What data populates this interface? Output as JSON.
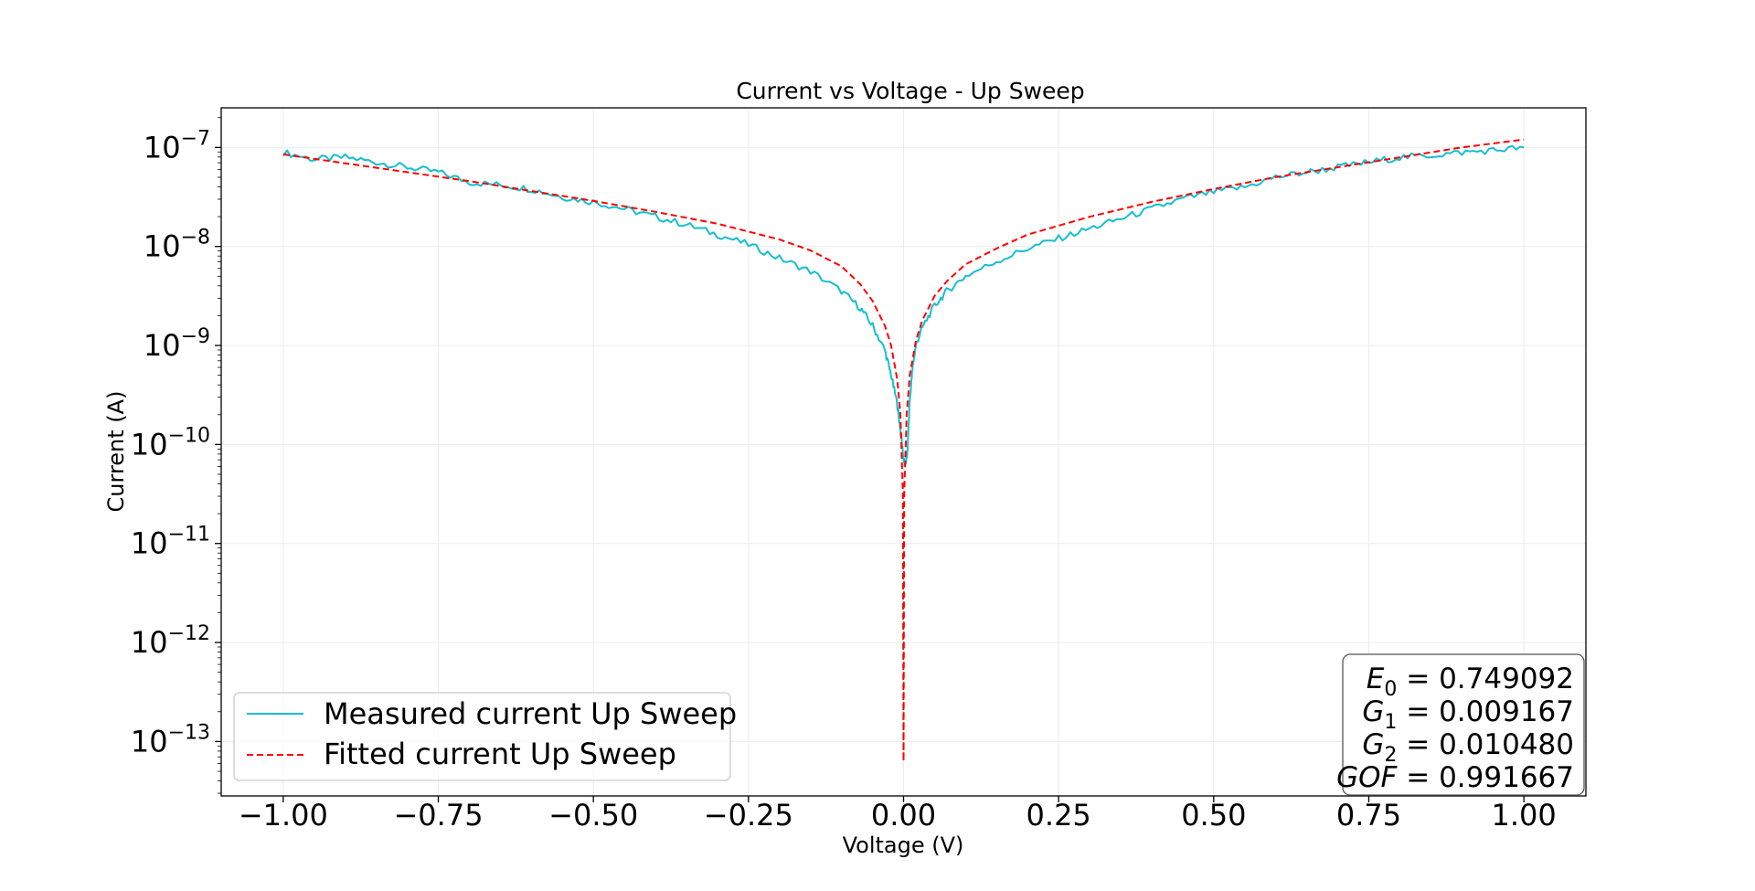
{
  "chart_data": {
    "type": "line",
    "title": "Current vs Voltage - Up Sweep",
    "xlabel": "Voltage (V)",
    "ylabel": "Current (A)",
    "xscale": "linear",
    "yscale": "log",
    "xlim": [
      -1.1,
      1.1
    ],
    "ylim_log10": [
      -13.55,
      -6.6
    ],
    "grid": true,
    "x_ticks": [
      -1.0,
      -0.75,
      -0.5,
      -0.25,
      0.0,
      0.25,
      0.5,
      0.75,
      1.0
    ],
    "x_tick_labels": [
      "−1.00",
      "−0.75",
      "−0.50",
      "−0.25",
      "0.00",
      "0.25",
      "0.50",
      "0.75",
      "1.00"
    ],
    "y_ticks": [
      {
        "exp": -7,
        "base": "10",
        "sup": "−7"
      },
      {
        "exp": -8,
        "base": "10",
        "sup": "−8"
      },
      {
        "exp": -9,
        "base": "10",
        "sup": "−9"
      },
      {
        "exp": -10,
        "base": "10",
        "sup": "−10"
      },
      {
        "exp": -11,
        "base": "10",
        "sup": "−11"
      },
      {
        "exp": -12,
        "base": "10",
        "sup": "−12"
      },
      {
        "exp": -13,
        "base": "10",
        "sup": "−13"
      }
    ],
    "legend_position": "lower-left",
    "series": [
      {
        "name": "Measured current Up Sweep",
        "color": "#17BECF",
        "style": "solid",
        "x": [
          -1.0,
          -0.95,
          -0.9,
          -0.85,
          -0.8,
          -0.75,
          -0.7,
          -0.65,
          -0.6,
          -0.55,
          -0.5,
          -0.45,
          -0.4,
          -0.35,
          -0.3,
          -0.25,
          -0.2,
          -0.15,
          -0.1,
          -0.07,
          -0.05,
          -0.03,
          -0.02,
          -0.01,
          -0.005,
          0.0,
          0.003,
          0.006,
          0.01,
          0.015,
          0.02,
          0.03,
          0.05,
          0.07,
          0.1,
          0.15,
          0.2,
          0.25,
          0.3,
          0.35,
          0.4,
          0.45,
          0.5,
          0.55,
          0.6,
          0.65,
          0.7,
          0.75,
          0.8,
          0.85,
          0.9,
          0.95,
          1.0
        ],
        "y_log10": [
          -7.05,
          -7.12,
          -7.1,
          -7.15,
          -7.2,
          -7.25,
          -7.35,
          -7.38,
          -7.42,
          -7.5,
          -7.55,
          -7.62,
          -7.7,
          -7.78,
          -7.88,
          -7.98,
          -8.12,
          -8.25,
          -8.45,
          -8.62,
          -8.8,
          -9.05,
          -9.3,
          -9.6,
          -9.85,
          -10.15,
          -10.2,
          -10.1,
          -9.55,
          -9.2,
          -9.0,
          -8.82,
          -8.6,
          -8.45,
          -8.3,
          -8.15,
          -8.02,
          -7.92,
          -7.82,
          -7.72,
          -7.62,
          -7.52,
          -7.45,
          -7.4,
          -7.3,
          -7.25,
          -7.2,
          -7.15,
          -7.1,
          -7.08,
          -7.05,
          -7.03,
          -7.0
        ]
      },
      {
        "name": "Fitted current Up Sweep",
        "color": "#FF0000",
        "style": "dashed",
        "x": [
          -1.0,
          -0.9,
          -0.8,
          -0.7,
          -0.6,
          -0.5,
          -0.4,
          -0.3,
          -0.2,
          -0.15,
          -0.1,
          -0.07,
          -0.05,
          -0.03,
          -0.02,
          -0.01,
          -0.005,
          -0.001,
          0.0,
          0.001,
          0.005,
          0.01,
          0.02,
          0.03,
          0.05,
          0.07,
          0.1,
          0.15,
          0.2,
          0.3,
          0.4,
          0.5,
          0.6,
          0.7,
          0.8,
          0.9,
          1.0
        ],
        "y_log10": [
          -7.07,
          -7.16,
          -7.25,
          -7.34,
          -7.44,
          -7.54,
          -7.65,
          -7.77,
          -7.93,
          -8.04,
          -8.2,
          -8.38,
          -8.55,
          -8.8,
          -9.0,
          -9.35,
          -9.7,
          -10.5,
          -13.2,
          -10.5,
          -9.7,
          -9.3,
          -8.95,
          -8.75,
          -8.5,
          -8.35,
          -8.18,
          -8.02,
          -7.88,
          -7.7,
          -7.55,
          -7.42,
          -7.3,
          -7.2,
          -7.1,
          -7.0,
          -6.92
        ]
      }
    ],
    "annotation": [
      {
        "sym": "E",
        "sub": "0",
        "value": "= 0.749092"
      },
      {
        "sym": "G",
        "sub": "1",
        "value": "= 0.009167"
      },
      {
        "sym": "G",
        "sub": "2",
        "value": "= 0.010480"
      },
      {
        "sym": "GOF",
        "sub": "",
        "value": "= 0.991667"
      }
    ]
  }
}
